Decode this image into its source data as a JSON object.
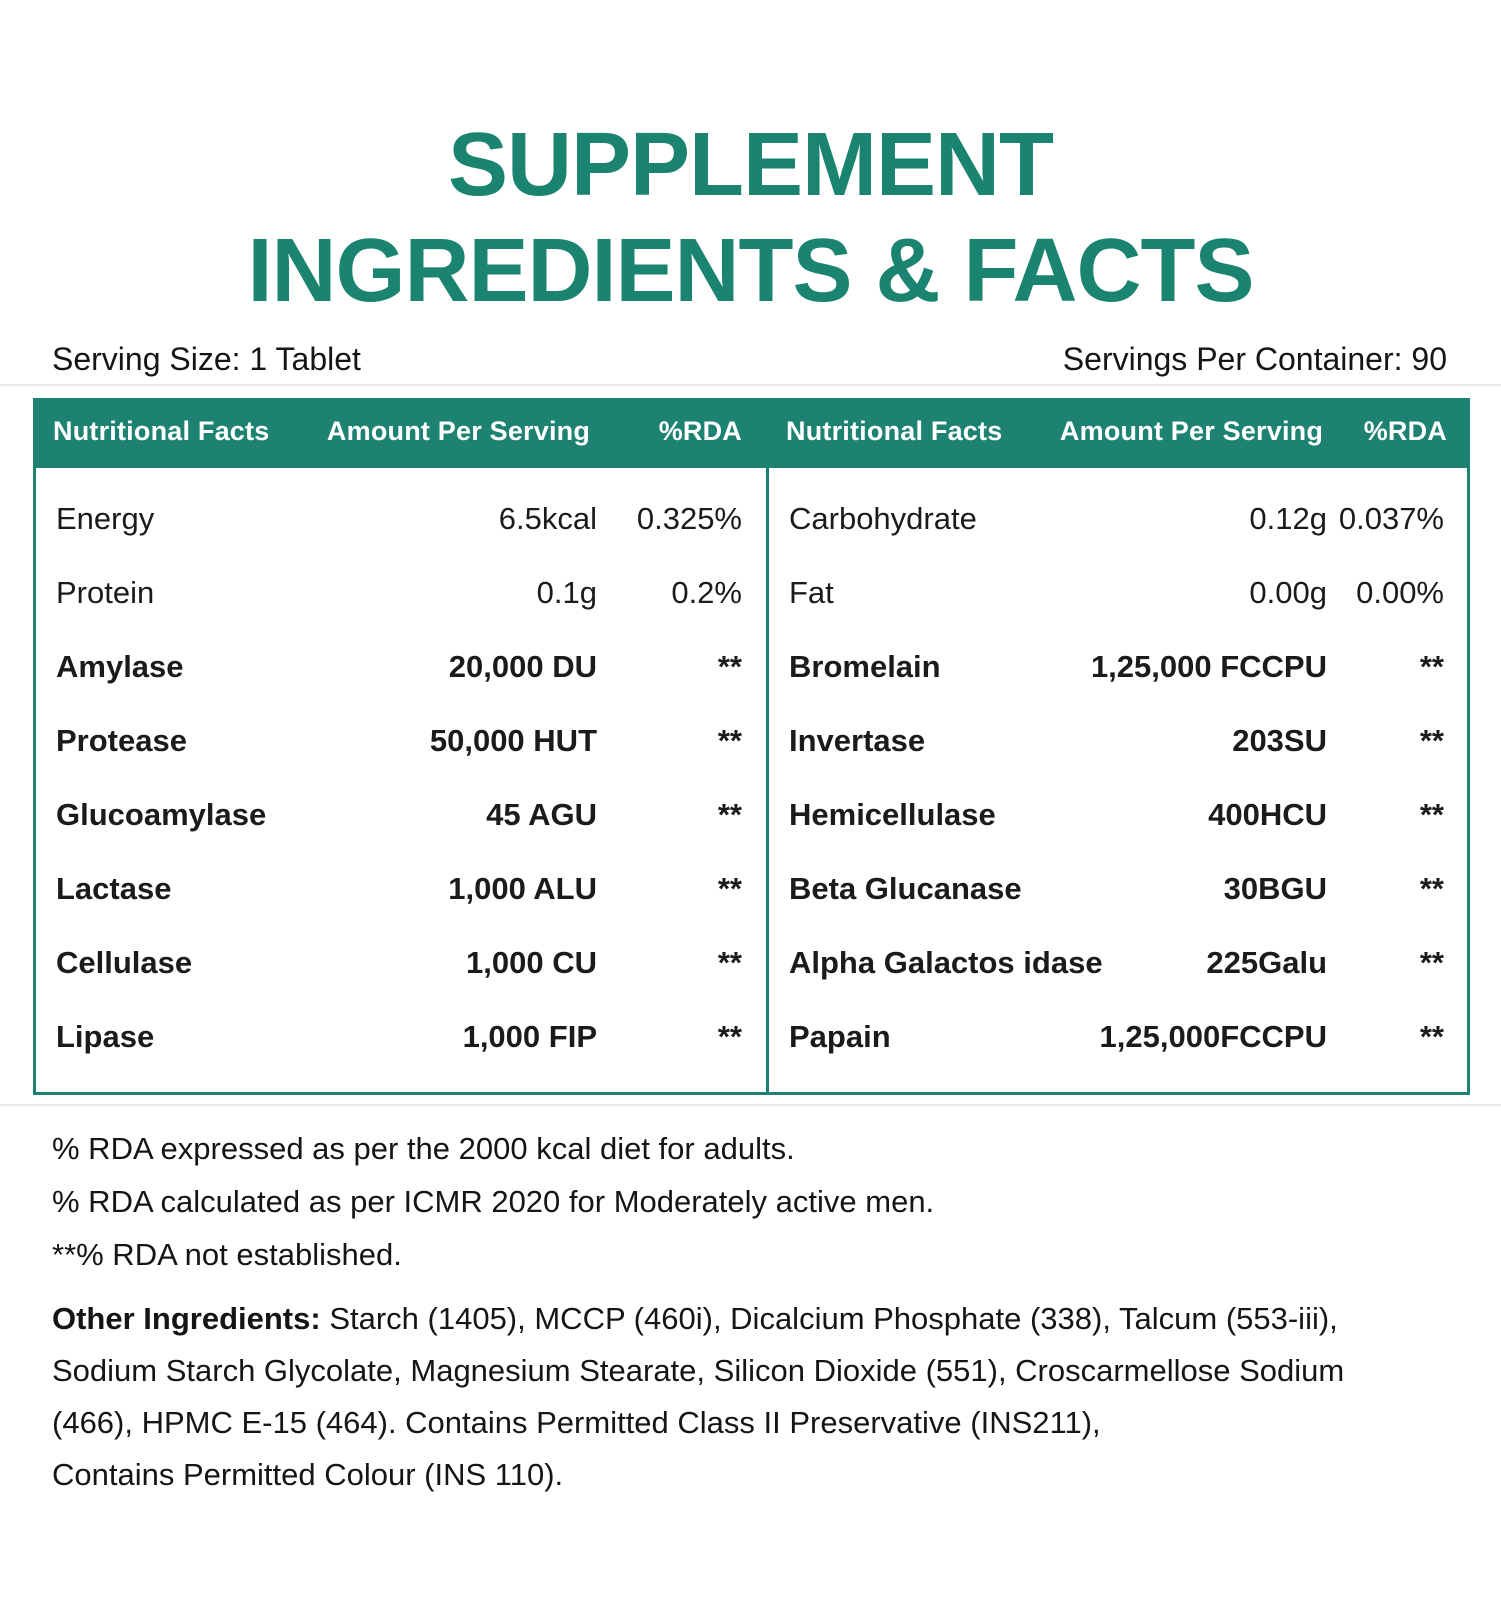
{
  "title": {
    "line1": "SUPPLEMENT",
    "line2": "INGREDIENTS & FACTS"
  },
  "serving": {
    "size": "Serving Size: 1 Tablet",
    "per_container": "Servings Per Container: 90"
  },
  "table": {
    "headers": [
      "Nutritional Facts",
      "Amount Per Serving",
      "%RDA"
    ],
    "left": {
      "rows": [
        {
          "name": "Energy",
          "amount": "6.5kcal",
          "rda": "0.325%"
        },
        {
          "name": "Protein",
          "amount": "0.1g",
          "rda": "0.2%"
        },
        {
          "name": "Amylase",
          "amount": "20,000 DU",
          "rda": "**"
        },
        {
          "name": "Protease",
          "amount": "50,000 HUT",
          "rda": "**"
        },
        {
          "name": "Glucoamylase",
          "amount": "45 AGU",
          "rda": "**"
        },
        {
          "name": "Lactase",
          "amount": "1,000 ALU",
          "rda": "**"
        },
        {
          "name": "Cellulase",
          "amount": "1,000 CU",
          "rda": "**"
        },
        {
          "name": "Lipase",
          "amount": "1,000 FIP",
          "rda": "**"
        }
      ]
    },
    "right": {
      "rows": [
        {
          "name": "Carbohydrate",
          "amount": "0.12g",
          "rda": "0.037%"
        },
        {
          "name": "Fat",
          "amount": "0.00g",
          "rda": "0.00%"
        },
        {
          "name": "Bromelain",
          "amount": "1,25,000 FCCPU",
          "rda": "**"
        },
        {
          "name": "Invertase",
          "amount": "203SU",
          "rda": "**"
        },
        {
          "name": "Hemicellulase",
          "amount": "400HCU",
          "rda": "**"
        },
        {
          "name": "Beta Glucanase",
          "amount": "30BGU",
          "rda": "**"
        },
        {
          "name": "Alpha Galactos idase",
          "amount": "225Galu",
          "rda": "**"
        },
        {
          "name": "Papain",
          "amount": "1,25,000FCCPU",
          "rda": "**"
        }
      ]
    }
  },
  "notes": {
    "line1": "% RDA expressed as per the 2000 kcal diet for adults.",
    "line2": "% RDA calculated as per ICMR 2020 for Moderately active men.",
    "line3": "**% RDA not established."
  },
  "other_ingredients": {
    "label": "Other Ingredients:",
    "line1": " Starch (1405), MCCP (460i), Dicalcium Phosphate (338), Talcum (553-iii),",
    "line2": "Sodium Starch Glycolate, Magnesium Stearate, Silicon Dioxide (551), Croscarmellose Sodium",
    "line3": "(466), HPMC E-15 (464). Contains Permitted Class II Preservative (INS211),",
    "line4": "Contains Permitted Colour (INS 110)."
  },
  "colors": {
    "title_green": "#1b8471",
    "header_teal": "#1e8273",
    "text": "#1b1b1b",
    "header_text": "#ffffff",
    "hairline": "#e9e9e9"
  }
}
